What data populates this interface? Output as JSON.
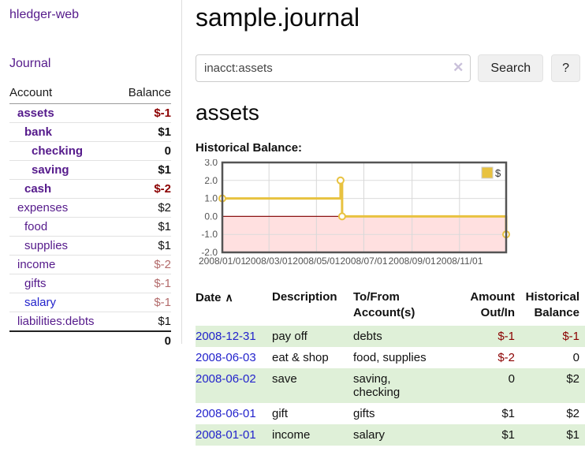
{
  "colors": {
    "link_purple": "#551a8b",
    "link_blue": "#2323cc",
    "negative_dark_red": "#8b0000",
    "negative_faded_red": "#b36b6b",
    "row_shade_green": "#dff0d8",
    "chart_line_gold": "#E8C240",
    "chart_negative_fill": "#FFE0E0",
    "chart_zero_line": "#8B1414",
    "chart_border": "#545454"
  },
  "sidebar": {
    "app_title": "hledger-web",
    "journal_link": "Journal",
    "accounts": {
      "headers": {
        "account": "Account",
        "balance": "Balance"
      },
      "rows": [
        {
          "name": "assets",
          "indent": 0,
          "emph": true,
          "neg": true,
          "dim": false,
          "blue": false,
          "balance": "$-1"
        },
        {
          "name": "bank",
          "indent": 1,
          "emph": true,
          "neg": false,
          "dim": false,
          "blue": false,
          "balance": "$1"
        },
        {
          "name": "checking",
          "indent": 2,
          "emph": true,
          "neg": false,
          "dim": false,
          "blue": false,
          "balance": "0"
        },
        {
          "name": "saving",
          "indent": 2,
          "emph": true,
          "neg": false,
          "dim": false,
          "blue": false,
          "balance": "$1"
        },
        {
          "name": "cash",
          "indent": 1,
          "emph": true,
          "neg": true,
          "dim": false,
          "blue": false,
          "balance": "$-2"
        },
        {
          "name": "expenses",
          "indent": 0,
          "emph": false,
          "neg": false,
          "dim": false,
          "blue": false,
          "balance": "$2"
        },
        {
          "name": "food",
          "indent": 1,
          "emph": false,
          "neg": false,
          "dim": false,
          "blue": false,
          "balance": "$1"
        },
        {
          "name": "supplies",
          "indent": 1,
          "emph": false,
          "neg": false,
          "dim": false,
          "blue": false,
          "balance": "$1"
        },
        {
          "name": "income",
          "indent": 0,
          "emph": false,
          "neg": true,
          "dim": true,
          "blue": false,
          "balance": "$-2"
        },
        {
          "name": "gifts",
          "indent": 1,
          "emph": false,
          "neg": true,
          "dim": true,
          "blue": false,
          "balance": "$-1"
        },
        {
          "name": "salary",
          "indent": 1,
          "emph": false,
          "neg": true,
          "dim": true,
          "blue": true,
          "balance": "$-1"
        },
        {
          "name": "liabilities:debts",
          "indent": 0,
          "emph": false,
          "neg": false,
          "dim": false,
          "blue": false,
          "balance": "$1"
        }
      ],
      "total": "0"
    }
  },
  "main": {
    "title": "sample.journal",
    "search": {
      "value": "inacct:assets",
      "placeholder": "",
      "clear_icon": "✕",
      "search_button": "Search",
      "help_button": "?"
    },
    "account_heading": "assets",
    "chart_label": "Historical Balance:"
  },
  "chart_data": {
    "type": "line",
    "step": true,
    "title": "Historical Balance:",
    "series": [
      {
        "name": "$",
        "color": "#E8C240",
        "points": [
          [
            "2008-01-01",
            1
          ],
          [
            "2008-06-01",
            2
          ],
          [
            "2008-06-03",
            0
          ],
          [
            "2008-12-31",
            -1
          ]
        ]
      }
    ],
    "xlim": [
      "2008-01-01",
      "2008-12-31"
    ],
    "ylim": [
      -2,
      3
    ],
    "x_ticks": [
      "2008/01/01",
      "2008/03/01",
      "2008/05/01",
      "2008/07/01",
      "2008/09/01",
      "2008/11/01"
    ],
    "y_ticks": [
      3.0,
      2.0,
      1.0,
      0.0,
      -1.0,
      -2.0
    ],
    "grid": true,
    "legend_position": "top-right",
    "legend_label": "$"
  },
  "register_table": {
    "headers": {
      "date": "Date",
      "sort_icon": "∧",
      "description": "Description",
      "tofrom": "To/From\nAccount(s)",
      "amount": "Amount\nOut/In",
      "balance": "Historical\nBalance"
    },
    "rows": [
      {
        "date": "2008-12-31",
        "description": "pay off",
        "tofrom": "debts",
        "amount": "$-1",
        "amount_neg": true,
        "balance": "$-1",
        "balance_neg": true,
        "shaded": true
      },
      {
        "date": "2008-06-03",
        "description": "eat & shop",
        "tofrom": "food, supplies",
        "amount": "$-2",
        "amount_neg": true,
        "balance": "0",
        "balance_neg": false,
        "shaded": false
      },
      {
        "date": "2008-06-02",
        "description": "save",
        "tofrom": "saving,\nchecking",
        "amount": "0",
        "amount_neg": false,
        "balance": "$2",
        "balance_neg": false,
        "shaded": true
      },
      {
        "date": "2008-06-01",
        "description": "gift",
        "tofrom": "gifts",
        "amount": "$1",
        "amount_neg": false,
        "balance": "$2",
        "balance_neg": false,
        "shaded": false
      },
      {
        "date": "2008-01-01",
        "description": "income",
        "tofrom": "salary",
        "amount": "$1",
        "amount_neg": false,
        "balance": "$1",
        "balance_neg": false,
        "shaded": true
      }
    ]
  }
}
